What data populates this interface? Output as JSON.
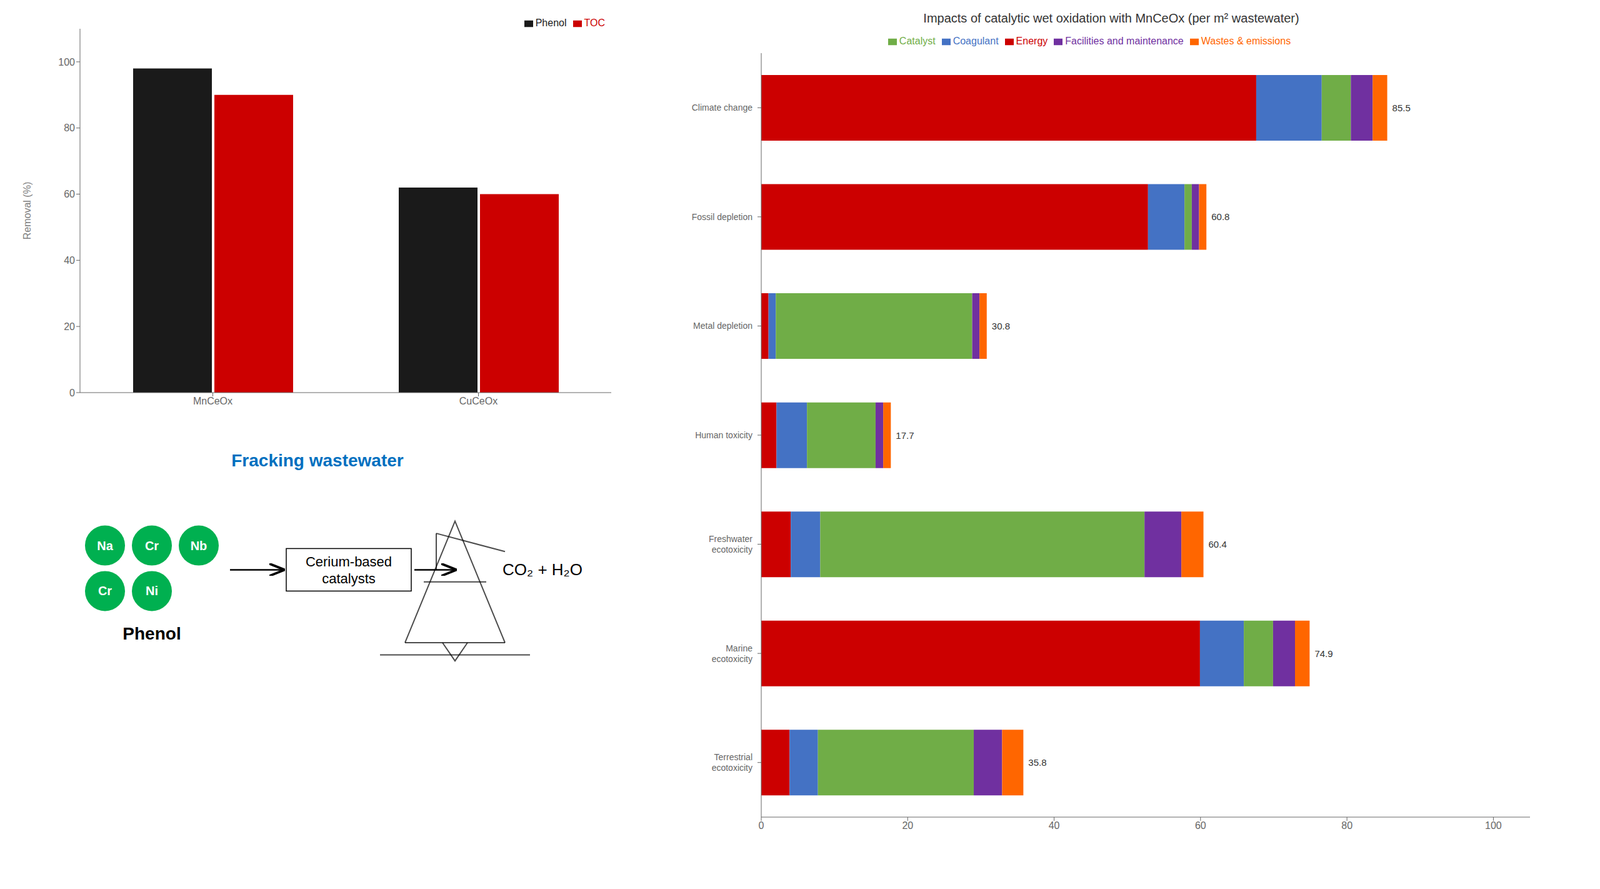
{
  "chart_data": [
    {
      "type": "bar",
      "categories": [
        "MnCeOx",
        "CuCeOx"
      ],
      "series": [
        {
          "name": "Phenol",
          "color": "#1a1a1a",
          "values": [
            98,
            62
          ]
        },
        {
          "name": "TOC",
          "color": "#cc0000",
          "values": [
            90,
            60
          ]
        }
      ],
      "y_label": "Removal (%)",
      "ylim": [
        0,
        110
      ],
      "yticks": [
        0,
        20,
        40,
        60,
        80,
        100
      ],
      "legend": "upper right",
      "grid": false
    },
    {
      "type": "bar",
      "orientation": "horizontal",
      "stacked": true,
      "title": "Impacts of catalytic wet oxidation with MnCeOx (per m² wastewater)",
      "categories": [
        "Climate change",
        "Fossil depletion",
        "Metal depletion",
        "Human toxicity",
        "Freshwater\necotoxicity",
        "Marine\necotoxicity",
        "Terrestrial\necotoxicity"
      ],
      "series": [
        {
          "name": "Energy",
          "color": "#cc0000",
          "values": [
            67.604651,
            52.82623,
            0.993548,
            2.082353,
            4.026667,
            59.92,
            3.87027
          ]
        },
        {
          "name": "Coagulant",
          "color": "#4472c4",
          "values": [
            8.947674,
            4.983607,
            0.993548,
            4.164706,
            4.026667,
            5.992,
            3.87027
          ]
        },
        {
          "name": "Catalyst",
          "color": "#70ad47",
          "values": [
            3.976744,
            0.996721,
            26.825806,
            9.370588,
            44.293333,
            3.994667,
            21.286486
          ]
        },
        {
          "name": "Facilities and maintenance",
          "color": "#7030a0",
          "values": [
            2.982558,
            0.996721,
            0.993548,
            1.041176,
            5.033333,
            2.996,
            3.87027
          ]
        },
        {
          "name": "Wastes & emissions",
          "color": "#ff6600",
          "values": [
            1.988372,
            0.996721,
            0.993548,
            1.041176,
            3.02,
            1.997333,
            2.902703
          ]
        }
      ],
      "totals": [
        85.5,
        60.8,
        30.8,
        17.7,
        60.4,
        74.9,
        35.8
      ],
      "xlim": [
        0,
        105
      ],
      "xticks": [
        0,
        20,
        40,
        60,
        80,
        100
      ],
      "legend": "upper center",
      "grid": false
    },
    {
      "type": "diagram",
      "annotations": [
        {
          "text": "Fracking wastewater",
          "color": "#0070c0"
        },
        {
          "text": "Phenol"
        },
        {
          "text": "Cerium-based\ncatalysts"
        },
        {
          "text": "CO₂ + H₂O"
        }
      ],
      "categories": [
        "Na",
        "Cr",
        "Nb",
        "Cr",
        "Ni"
      ],
      "color": "#00b050"
    }
  ]
}
